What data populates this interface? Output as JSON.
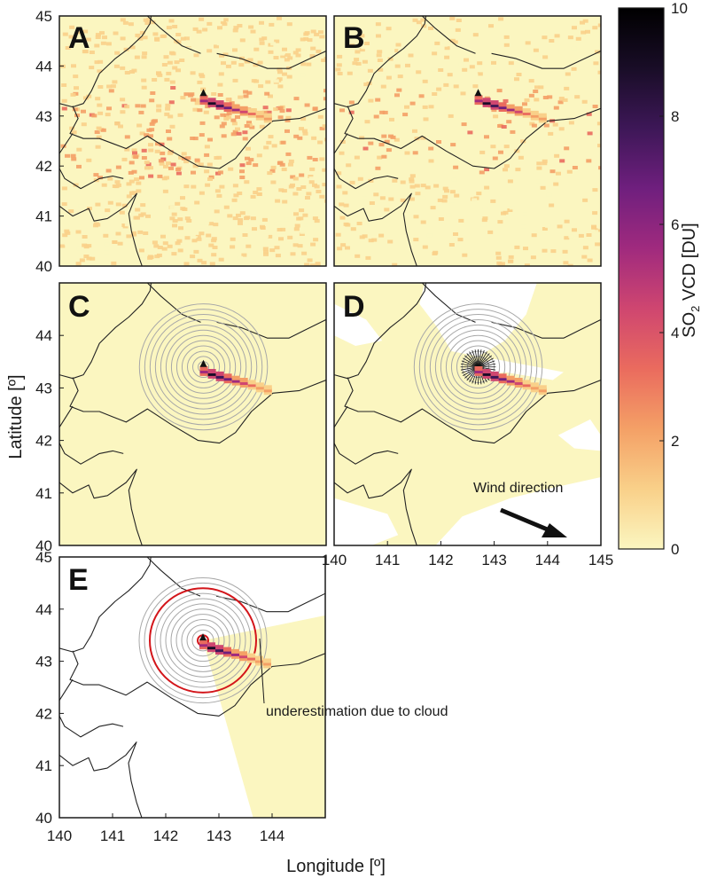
{
  "chart_data": {
    "type": "heatmap",
    "panels": [
      "A",
      "B",
      "C",
      "D",
      "E"
    ],
    "xlabel": "Longitude [º]",
    "ylabel": "Latitude [º]",
    "xlim": [
      140,
      145
    ],
    "ylim": [
      40,
      45
    ],
    "xticks": [
      140,
      141,
      142,
      143,
      144,
      145
    ],
    "xticks_panel_e": [
      140,
      141,
      142,
      143,
      144
    ],
    "yticks": [
      40,
      41,
      42,
      43,
      44,
      45
    ],
    "yticks_lower_panels": [
      40,
      41,
      42,
      43,
      44
    ],
    "colorbar": {
      "label": "SO2 VCD [DU]",
      "label_main": "SO",
      "label_sub": "2",
      "label_rest": " VCD [DU]",
      "range": [
        0,
        10
      ],
      "ticks": [
        0,
        2,
        4,
        6,
        8,
        10
      ],
      "colors": [
        "#fbf6c0",
        "#f9d089",
        "#f4a066",
        "#ea6b5e",
        "#cf4670",
        "#a02a7e",
        "#6f1f7e",
        "#3d1757",
        "#190d27",
        "#000000"
      ]
    },
    "volcano": {
      "lon": 142.7,
      "lat": 43.4
    },
    "plume": {
      "lon": [
        142.7,
        142.85,
        143.0,
        143.15,
        143.3,
        143.45,
        143.6,
        143.75,
        143.9
      ],
      "lat": [
        43.32,
        43.27,
        43.22,
        43.18,
        43.14,
        43.1,
        43.06,
        43.01,
        42.96
      ],
      "so2": [
        6,
        9,
        8,
        7,
        5,
        4,
        3,
        2.5,
        2
      ]
    },
    "wind_direction_label": "Wind direction",
    "annotation": "underestimation due to cloud",
    "ring_radii_deg": [
      0.1,
      0.2,
      0.3,
      0.4,
      0.5,
      0.6,
      0.7,
      0.8,
      0.9,
      1.0,
      1.1,
      1.2
    ],
    "red_circle_radii_deg": [
      0.1,
      1.0
    ],
    "land_color": "#fbf6c0",
    "ring_color": "#a8a8a8",
    "accent_red": "#d3161b"
  }
}
